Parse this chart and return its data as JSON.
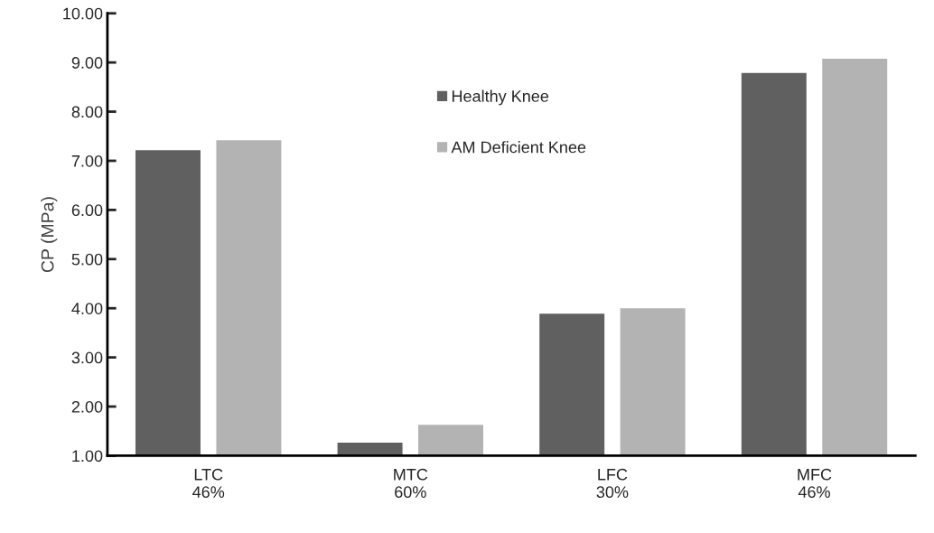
{
  "chart_data": {
    "type": "bar",
    "ylabel": "CP (MPa)",
    "categories": [
      "LTC\n46%",
      "MTC\n60%",
      "LFC\n30%",
      "MFC\n46%"
    ],
    "series": [
      {
        "name": "Healthy Knee",
        "color": "#606060",
        "values": [
          7.23,
          1.28,
          3.9,
          8.8
        ]
      },
      {
        "name": "AM Deficient Knee",
        "color": "#b3b3b3",
        "values": [
          7.43,
          1.64,
          4.01,
          9.09
        ]
      }
    ],
    "ylim": [
      1,
      10
    ],
    "yticks": [
      {
        "value": 1,
        "label": "1.00"
      },
      {
        "value": 2,
        "label": "2.00"
      },
      {
        "value": 3,
        "label": "3.00"
      },
      {
        "value": 4,
        "label": "4.00"
      },
      {
        "value": 5,
        "label": "5.00"
      },
      {
        "value": 6,
        "label": "6.00"
      },
      {
        "value": 7,
        "label": "7.00"
      },
      {
        "value": 8,
        "label": "8.00"
      },
      {
        "value": 9,
        "label": "9.00"
      },
      {
        "value": 10,
        "label": "10.00"
      }
    ],
    "grid": false,
    "legend": "top"
  }
}
